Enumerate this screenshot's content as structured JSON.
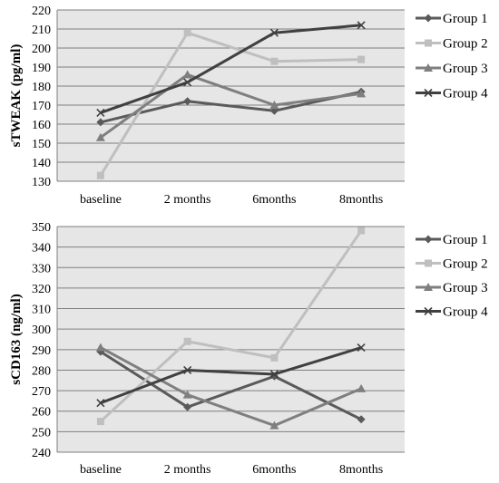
{
  "colors": {
    "plot_background": "#e6e6e6",
    "gridline": "#7f7f7f",
    "Group 1": "#5a5a5a",
    "Group 2": "#bfbfbf",
    "Group 3": "#7f7f7f",
    "Group 4": "#404040"
  },
  "chart_data": [
    {
      "type": "line",
      "title": "",
      "ylabel": "sTWEAK (pg/ml)",
      "xlabel": "",
      "categories": [
        "baseline",
        "2 months",
        "6months",
        "8months"
      ],
      "ylim": [
        130,
        220
      ],
      "yticks": [
        130,
        140,
        150,
        160,
        170,
        180,
        190,
        200,
        210,
        220
      ],
      "grid": true,
      "legend_position": "right",
      "series": [
        {
          "name": "Group 1",
          "marker": "diamond",
          "values": [
            161,
            172,
            167,
            177
          ]
        },
        {
          "name": "Group 2",
          "marker": "square",
          "values": [
            133,
            208,
            193,
            194
          ]
        },
        {
          "name": "Group 3",
          "marker": "triangle",
          "values": [
            153,
            186,
            170,
            176
          ]
        },
        {
          "name": "Group 4",
          "marker": "x",
          "values": [
            166,
            182,
            208,
            212
          ]
        }
      ]
    },
    {
      "type": "line",
      "title": "",
      "ylabel": "sCD163 (ng/ml)",
      "xlabel": "",
      "categories": [
        "baseline",
        "2 months",
        "6months",
        "8months"
      ],
      "ylim": [
        240,
        350
      ],
      "yticks": [
        240,
        250,
        260,
        270,
        280,
        290,
        300,
        310,
        320,
        330,
        340,
        350
      ],
      "grid": true,
      "legend_position": "right",
      "series": [
        {
          "name": "Group 1",
          "marker": "diamond",
          "values": [
            289,
            262,
            277,
            256
          ]
        },
        {
          "name": "Group 2",
          "marker": "square",
          "values": [
            255,
            294,
            286,
            348
          ]
        },
        {
          "name": "Group 3",
          "marker": "triangle",
          "values": [
            291,
            268,
            253,
            271
          ]
        },
        {
          "name": "Group 4",
          "marker": "x",
          "values": [
            264,
            280,
            278,
            291
          ]
        }
      ]
    }
  ]
}
